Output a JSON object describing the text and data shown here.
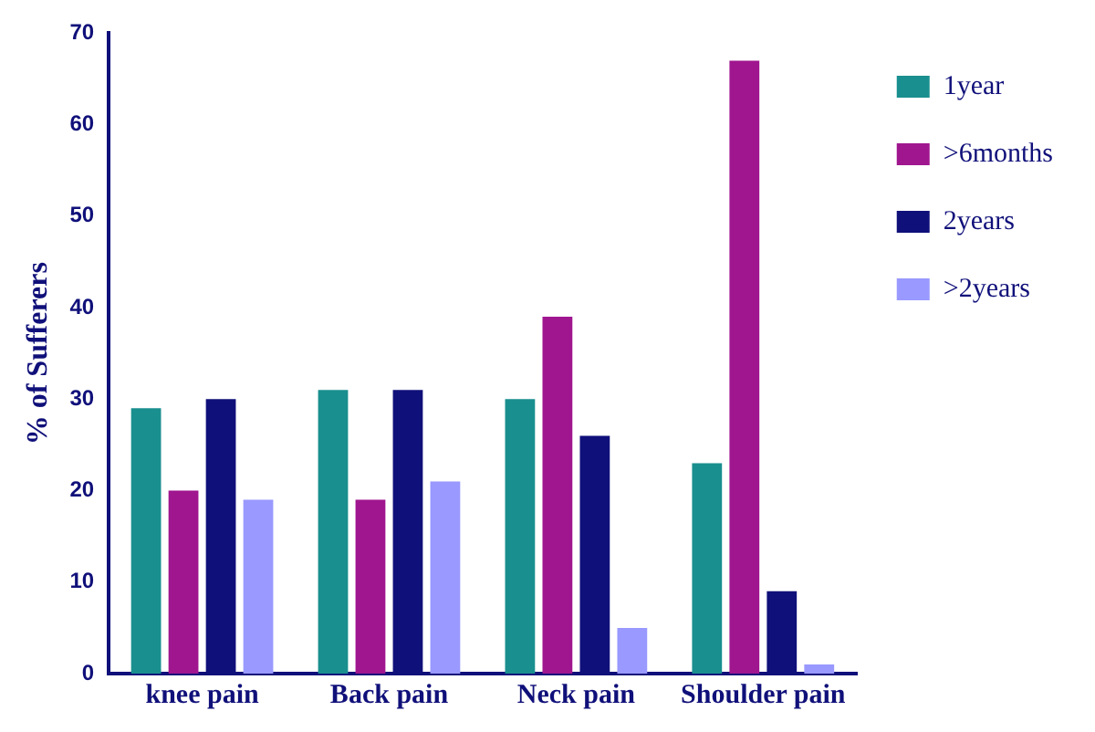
{
  "chart_data": {
    "type": "bar",
    "ylabel": "% of Sufferers",
    "categories": [
      "knee pain",
      "Back pain",
      "Neck pain",
      "Shoulder pain"
    ],
    "series": [
      {
        "name": "1year",
        "color": "#1a8f8f",
        "values": [
          29,
          31,
          30,
          23
        ]
      },
      {
        "name": ">6months",
        "color": "#a0168f",
        "values": [
          20,
          19,
          39,
          67
        ]
      },
      {
        "name": "2years",
        "color": "#10107a",
        "values": [
          30,
          31,
          26,
          9
        ]
      },
      {
        "name": ">2years",
        "color": "#9999ff",
        "values": [
          19,
          21,
          5,
          1
        ]
      }
    ],
    "ylim": [
      0,
      70
    ],
    "yticks": [
      0,
      10,
      20,
      30,
      40,
      50,
      60,
      70
    ],
    "grid": false,
    "legend": "top right"
  }
}
